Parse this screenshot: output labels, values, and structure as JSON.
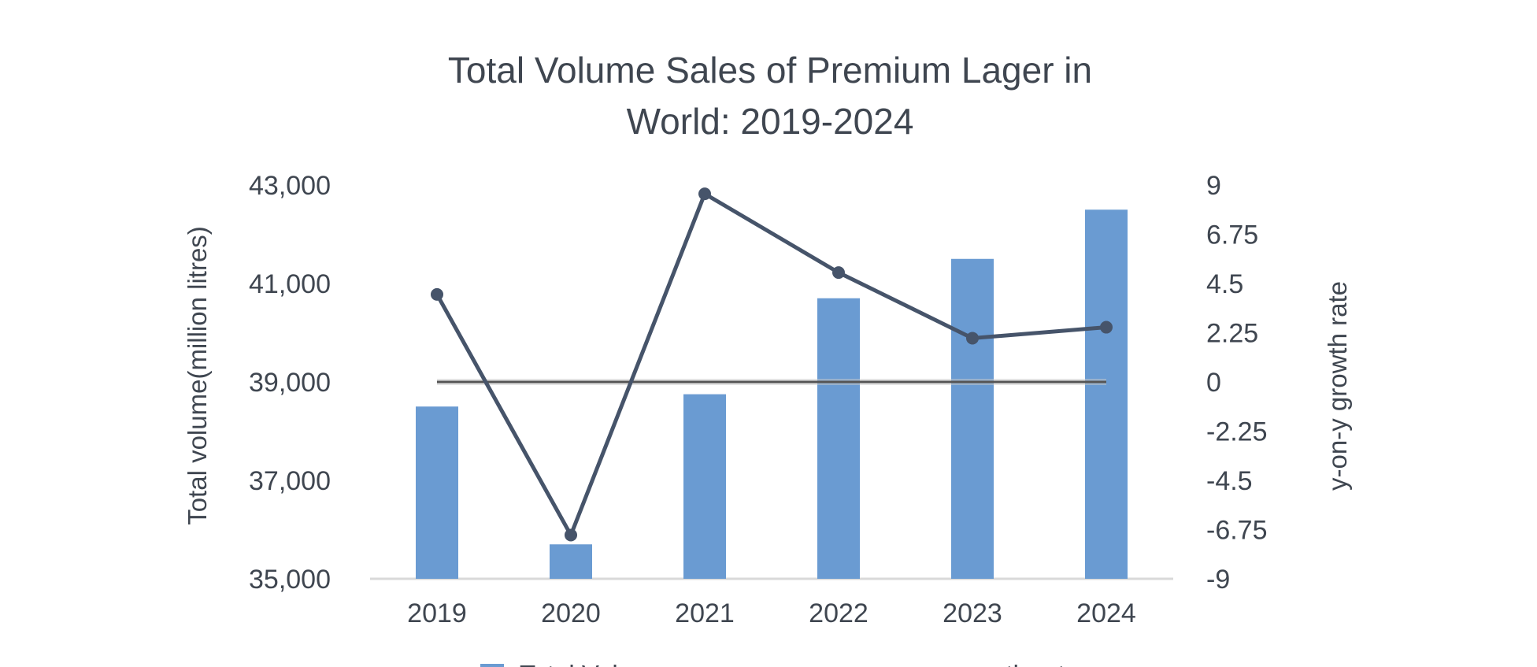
{
  "chart_data": {
    "type": "bar+line",
    "title_lines": [
      "Total Volume Sales of Premium Lager in",
      "World: 2019-2024"
    ],
    "categories": [
      "2019",
      "2020",
      "2021",
      "2022",
      "2023",
      "2024"
    ],
    "series": [
      {
        "name": "Total Volume",
        "type": "bar",
        "axis": "left",
        "values": [
          38500,
          35700,
          38750,
          40700,
          41500,
          42500
        ]
      },
      {
        "name": "y-on-y growth rate",
        "type": "line",
        "axis": "right",
        "values": [
          4.0,
          -7.0,
          8.6,
          5.0,
          2.0,
          2.5
        ]
      }
    ],
    "left_axis": {
      "label": "Total volume(million litres)",
      "ticks": [
        "35,000",
        "37,000",
        "39,000",
        "41,000",
        "43,000"
      ],
      "min": 35000,
      "max": 43000
    },
    "right_axis": {
      "label": "y-on-y growth rate",
      "ticks": [
        "-9",
        "-6.75",
        "-4.5",
        "-2.25",
        "0",
        "2.25",
        "4.5",
        "6.75",
        "9"
      ],
      "min": -9,
      "max": 9
    },
    "legend": [
      "Total Volume",
      "y-on-y growth rate"
    ],
    "colors": {
      "bar": "#6a9bd2",
      "line": "#46546a",
      "zero_line": "#555555",
      "axis": "#d9d9d9",
      "text": "#3f4650"
    }
  }
}
